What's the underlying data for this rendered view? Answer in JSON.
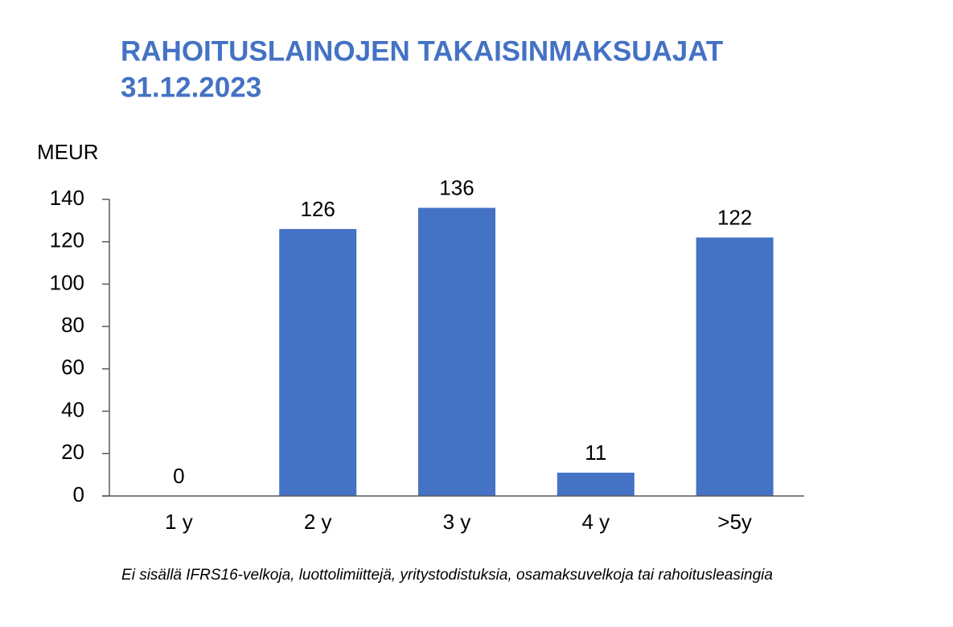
{
  "chart_data": {
    "type": "bar",
    "title": "RAHOITUSLAINOJEN TAKAISINMAKSUAJAT",
    "subtitle": "31.12.2023",
    "y_label": "MEUR",
    "categories": [
      "1 y",
      "2 y",
      "3 y",
      "4 y",
      ">5y"
    ],
    "values": [
      0,
      126,
      136,
      11,
      122
    ],
    "color": "#4472c4",
    "ylim": [
      0,
      140
    ],
    "yticks": [
      0,
      20,
      40,
      60,
      80,
      100,
      120,
      140
    ],
    "grid": false,
    "note": "Ei sisällä IFRS16-velkoja, luottolimiittejä, yritystodistuksia, osamaksuvelkoja tai rahoitusleasingia"
  }
}
